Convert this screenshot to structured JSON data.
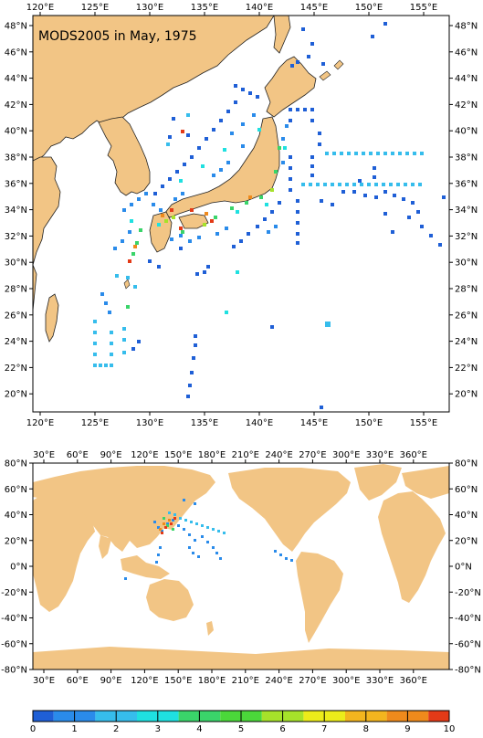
{
  "title": "MODS2005 in May, 1975",
  "colors": {
    "land": "#f2c585",
    "coast": "#222222",
    "frame": "#000000",
    "colorbar": [
      "#1f5fd6",
      "#2a8bea",
      "#36bdec",
      "#1fe0e0",
      "#3ad46a",
      "#4bd83a",
      "#a6e22a",
      "#ecec1a",
      "#f3b51e",
      "#ef8a1c",
      "#e33a17"
    ]
  },
  "top_map": {
    "lon_ticks": [
      "120°E",
      "125°E",
      "130°E",
      "135°E",
      "140°E",
      "145°E",
      "150°E",
      "155°E"
    ],
    "lat_ticks": [
      "48°N",
      "46°N",
      "44°N",
      "42°N",
      "40°N",
      "38°N",
      "36°N",
      "34°N",
      "32°N",
      "30°N",
      "28°N",
      "26°N",
      "24°N",
      "22°N",
      "20°N"
    ]
  },
  "bottom_map": {
    "lon_ticks": [
      "30°E",
      "60°E",
      "90°E",
      "120°E",
      "150°E",
      "180°E",
      "210°E",
      "240°E",
      "270°E",
      "300°E",
      "330°E",
      "360°E"
    ],
    "lat_ticks": [
      "80°N",
      "60°N",
      "40°N",
      "20°N",
      "0°N",
      "-20°N",
      "-40°N",
      "-60°N",
      "-80°N"
    ]
  },
  "colorbar": {
    "labels": [
      "0",
      "1",
      "2",
      "3",
      "4",
      "5",
      "6",
      "7",
      "8",
      "9",
      "10"
    ]
  }
}
